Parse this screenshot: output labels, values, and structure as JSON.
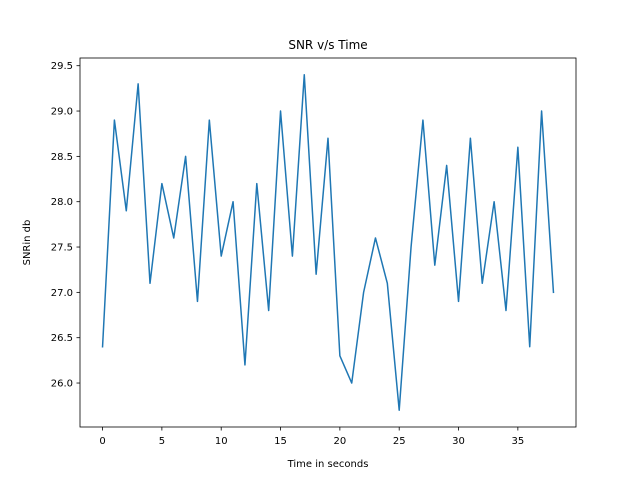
{
  "chart_data": {
    "type": "line",
    "title": "SNR v/s Time",
    "xlabel": "Time in seconds",
    "ylabel": "SNRin db",
    "xlim": [
      -1.9,
      39.9
    ],
    "ylim": [
      25.515,
      29.585
    ],
    "xticks": [
      0,
      5,
      10,
      15,
      20,
      25,
      30,
      35
    ],
    "yticks": [
      26.0,
      26.5,
      27.0,
      27.5,
      28.0,
      28.5,
      29.0,
      29.5
    ],
    "ytick_labels": [
      "26.0",
      "26.5",
      "27.0",
      "27.5",
      "28.0",
      "28.5",
      "29.0",
      "29.5"
    ],
    "grid": false,
    "color": "#1f77b4",
    "x": [
      0,
      1,
      2,
      3,
      4,
      5,
      6,
      7,
      8,
      9,
      10,
      11,
      12,
      13,
      14,
      15,
      16,
      17,
      18,
      19,
      20,
      21,
      22,
      23,
      24,
      25,
      26,
      27,
      28,
      29,
      30,
      31,
      32,
      33,
      34,
      35,
      36,
      37,
      38
    ],
    "y": [
      26.4,
      28.9,
      27.9,
      29.3,
      27.1,
      28.2,
      27.6,
      28.5,
      26.9,
      28.9,
      27.4,
      28.0,
      26.2,
      28.2,
      26.8,
      29.0,
      27.4,
      29.4,
      27.2,
      28.7,
      26.3,
      26.0,
      27.0,
      27.6,
      27.1,
      25.7,
      27.5,
      28.9,
      27.3,
      28.4,
      26.9,
      28.7,
      27.1,
      28.0,
      26.8,
      28.6,
      26.4,
      29.0,
      27.0
    ]
  }
}
